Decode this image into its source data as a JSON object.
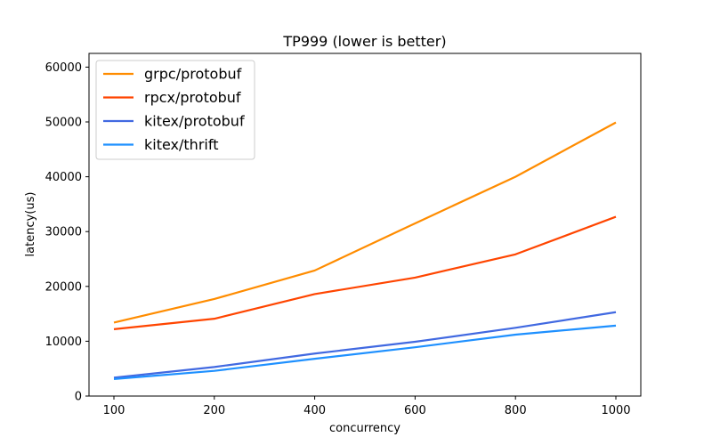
{
  "chart_data": {
    "type": "line",
    "title": "TP999 (lower is better)",
    "xlabel": "concurrency",
    "ylabel": "latency(us)",
    "categories": [
      "100",
      "200",
      "400",
      "600",
      "800",
      "1000"
    ],
    "ylim": [
      0,
      62500
    ],
    "yticks": [
      "0",
      "10000",
      "20000",
      "30000",
      "40000",
      "50000",
      "60000"
    ],
    "grid": false,
    "legend_position": "top-left",
    "series": [
      {
        "name": "grpc/protobuf",
        "color": "#ff8c00",
        "values": [
          13400,
          17700,
          22900,
          31500,
          40000,
          49900
        ]
      },
      {
        "name": "rpcx/protobuf",
        "color": "#ff4500",
        "values": [
          12200,
          14100,
          18600,
          21600,
          25850,
          32700
        ]
      },
      {
        "name": "kitex/protobuf",
        "color": "#4169e1",
        "values": [
          3350,
          5300,
          7750,
          9900,
          12450,
          15300
        ]
      },
      {
        "name": "kitex/thrift",
        "color": "#1e90ff",
        "values": [
          3100,
          4600,
          6800,
          8900,
          11200,
          12850
        ]
      }
    ]
  }
}
